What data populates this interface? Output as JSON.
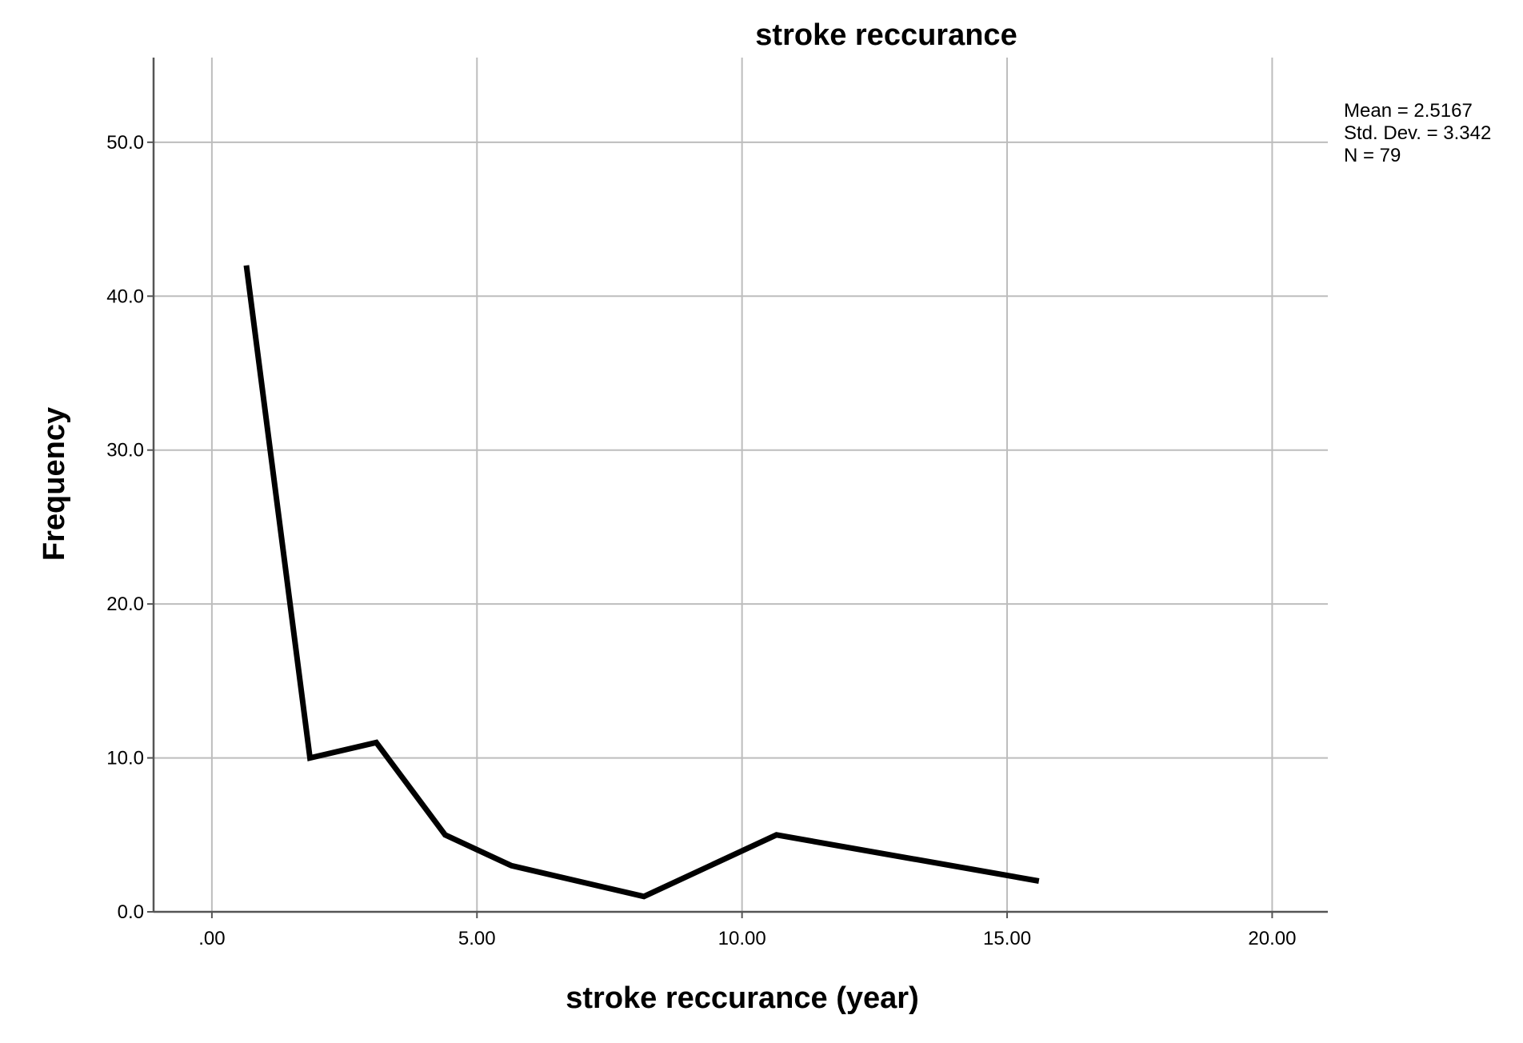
{
  "chart_data": {
    "type": "line",
    "title": "stroke reccurance",
    "xlabel": "stroke reccurance (year)",
    "ylabel": "Frequency",
    "xlim": [
      -1.1,
      21.05
    ],
    "ylim": [
      0,
      55.5
    ],
    "x_ticks": [
      0,
      5,
      10,
      15,
      20
    ],
    "x_tick_labels": [
      ".00",
      "5.00",
      "10.00",
      "15.00",
      "20.00"
    ],
    "y_ticks": [
      0,
      10,
      20,
      30,
      40,
      50
    ],
    "y_tick_labels": [
      "0.0",
      "10.0",
      "20.0",
      "30.0",
      "40.0",
      "50.0"
    ],
    "grid": true,
    "series": [
      {
        "x": [
          0.65,
          1.85,
          3.1,
          4.4,
          5.65,
          8.15,
          10.65,
          15.6
        ],
        "y": [
          42,
          10,
          11,
          5,
          3,
          1,
          5,
          2
        ],
        "color": "#000000"
      }
    ],
    "annotations": {
      "stats": [
        "Mean = 2.5167",
        "Std. Dev. = 3.342",
        "N = 79"
      ],
      "placement": "top-right, outside plot area"
    }
  }
}
